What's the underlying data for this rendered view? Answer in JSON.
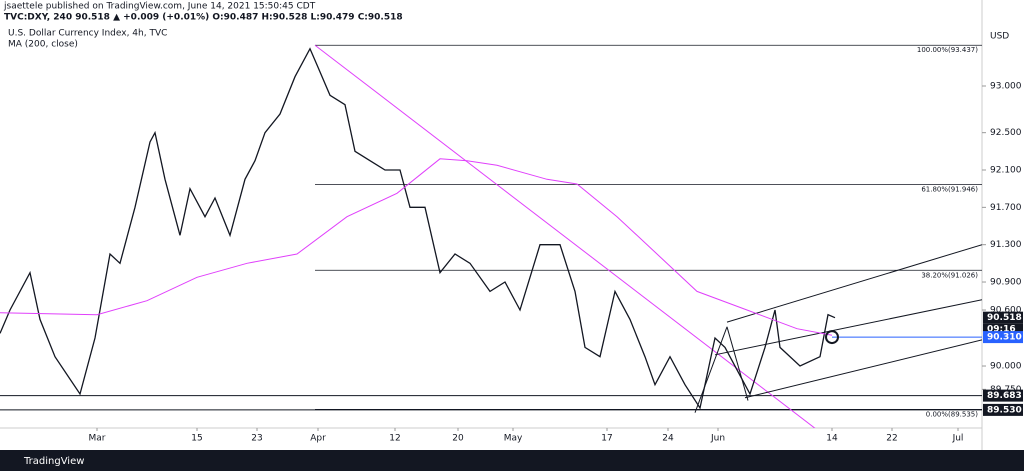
{
  "header": {
    "author": "jsaettele published on TradingView.com, June 14, 2021 15:50:45 CDT",
    "quote": "TVC:DXY, 240 90.518 ▲ +0.009 (+0.01%) O:90.487 H:90.528 L:90.479 C:90.518",
    "footer": "TradingView"
  },
  "chart_data": {
    "type": "line",
    "title": "U.S. Dollar Currency Index, 4h, TVC",
    "subtitle": "MA (200, close)",
    "y_axis_label": "USD",
    "xlim": [
      -9.7,
      88.5
    ],
    "ylim": [
      89.336,
      93.6
    ],
    "xticks": [
      {
        "value": 0,
        "label": "Mar"
      },
      {
        "value": 10,
        "label": "15"
      },
      {
        "value": 16,
        "label": "23"
      },
      {
        "value": 22.1,
        "label": "Apr"
      },
      {
        "value": 29.8,
        "label": "12"
      },
      {
        "value": 36.1,
        "label": "20"
      },
      {
        "value": 41.6,
        "label": "May"
      },
      {
        "value": 51,
        "label": "17"
      },
      {
        "value": 57.1,
        "label": "24"
      },
      {
        "value": 62.1,
        "label": "Jun"
      },
      {
        "value": 73.5,
        "label": "14"
      },
      {
        "value": 79.5,
        "label": "22"
      },
      {
        "value": 86.1,
        "label": "Jul"
      }
    ],
    "yticks": [
      {
        "value": 93,
        "label": "93.000"
      },
      {
        "value": 92.5,
        "label": "92.500"
      },
      {
        "value": 92.1,
        "label": "92.100"
      },
      {
        "value": 91.7,
        "label": "91.700"
      },
      {
        "value": 91.3,
        "label": "91.300"
      },
      {
        "value": 90.9,
        "label": "90.900"
      },
      {
        "value": 90.6,
        "label": "90.600"
      },
      {
        "value": 90,
        "label": "90.000"
      },
      {
        "value": 89.75,
        "label": "89.750"
      }
    ],
    "series": [
      {
        "name": "DXY",
        "color": "#131722",
        "x": [
          -9.7,
          -8.7,
          -6.7,
          -5.7,
          -4.2,
          -1.7,
          -0.2,
          1.3,
          2.3,
          3.8,
          5.3,
          5.8,
          6.8,
          8.3,
          9.3,
          10.8,
          11.8,
          13.3,
          14.8,
          15.8,
          16.8,
          18.3,
          19.8,
          21.3,
          22.1,
          23.3,
          24.8,
          25.8,
          27.3,
          28.8,
          30.3,
          31.3,
          32.8,
          34.3,
          35.8,
          37.3,
          39.3,
          40.8,
          42.3,
          44.3,
          46.3,
          47.8,
          48.8,
          50.3,
          51.8,
          53.3,
          54.8,
          55.8,
          57.3,
          58.8,
          60.3,
          61.8,
          62.8,
          64.3,
          65.3,
          66.8,
          67.8,
          68.3,
          70.3,
          72.3,
          73.1,
          73.8
        ],
        "values": [
          90.35,
          90.6,
          91.0,
          90.5,
          90.1,
          89.7,
          90.3,
          91.2,
          91.1,
          91.7,
          92.4,
          92.5,
          92.0,
          91.4,
          91.9,
          91.6,
          91.8,
          91.4,
          92.0,
          92.2,
          92.5,
          92.7,
          93.1,
          93.4,
          93.2,
          92.9,
          92.8,
          92.3,
          92.2,
          92.1,
          92.1,
          91.7,
          91.7,
          91.0,
          91.2,
          91.1,
          90.8,
          90.9,
          90.6,
          91.3,
          91.3,
          90.8,
          90.2,
          90.1,
          90.8,
          90.5,
          90.1,
          89.8,
          90.1,
          89.8,
          89.55,
          90.3,
          90.2,
          89.9,
          89.7,
          90.2,
          90.6,
          90.2,
          90.0,
          90.1,
          90.55,
          90.518
        ]
      },
      {
        "name": "MA (200, close)",
        "color": "#e040fb",
        "x": [
          -9.7,
          0,
          5,
          10,
          15,
          20,
          25,
          30,
          34.3,
          37,
          40,
          45,
          48,
          52,
          56,
          60,
          65,
          70,
          73.5
        ],
        "values": [
          90.57,
          90.55,
          90.7,
          90.95,
          91.1,
          91.2,
          91.6,
          91.85,
          92.22,
          92.2,
          92.15,
          92.0,
          91.95,
          91.6,
          91.2,
          90.8,
          90.6,
          90.4,
          90.33
        ]
      }
    ],
    "fib_levels": [
      {
        "value": 93.437,
        "label": "100.00%(93.437)"
      },
      {
        "value": 91.946,
        "label": "61.80%(91.946)"
      },
      {
        "value": 91.026,
        "label": "38.20%(91.026)"
      },
      {
        "value": 89.535,
        "label": "0.00%(89.535)"
      }
    ],
    "fib_start": 21.8,
    "horizontal_lines": [
      89.683,
      89.53
    ],
    "price_labels": [
      {
        "value": 90.518,
        "label": "90.518",
        "color": "#131722",
        "time": "09:16"
      },
      {
        "value": 90.31,
        "label": "90.310",
        "color": "#2962ff"
      },
      {
        "value": 89.683,
        "label": "89.683",
        "color": "#131722"
      },
      {
        "value": 89.53,
        "label": "89.530",
        "color": "#131722"
      }
    ],
    "trendlines": [
      {
        "color": "#e040fb",
        "points": [
          [
            21.8,
            93.437
          ],
          [
            73.3,
            89.21
          ]
        ]
      },
      {
        "color": "#131722",
        "points": [
          [
            63,
            90.47
          ],
          [
            88.5,
            91.3
          ]
        ]
      },
      {
        "color": "#131722",
        "points": [
          [
            61.8,
            90.12
          ],
          [
            88.5,
            90.71
          ]
        ]
      },
      {
        "color": "#131722",
        "points": [
          [
            64.8,
            89.66
          ],
          [
            88.5,
            90.28
          ]
        ]
      },
      {
        "color": "#131722",
        "points": [
          [
            59.8,
            89.5
          ],
          [
            63,
            90.42
          ]
        ]
      },
      {
        "color": "#131722",
        "points": [
          [
            63,
            90.42
          ],
          [
            65.1,
            89.63
          ]
        ]
      },
      {
        "color": "#2962ff",
        "points": [
          [
            73.5,
            90.31
          ],
          [
            88.5,
            90.31
          ]
        ]
      }
    ],
    "circle": [
      73.5,
      90.31
    ]
  }
}
